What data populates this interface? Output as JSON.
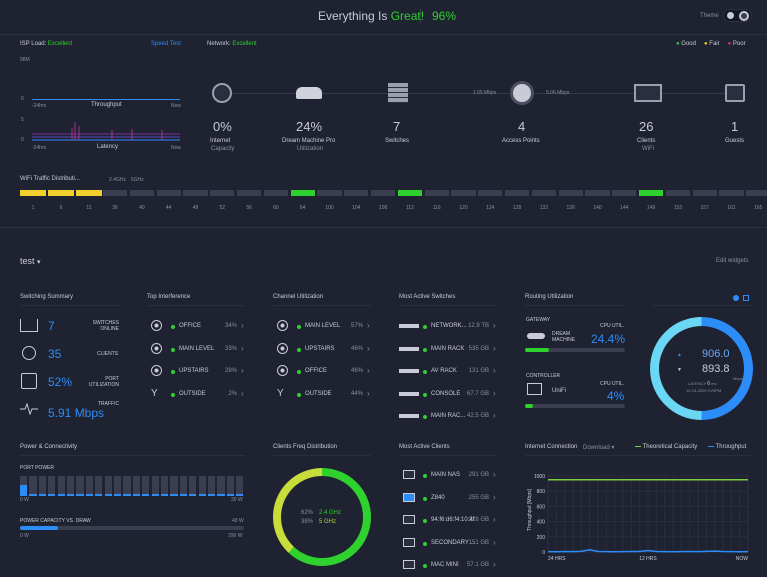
{
  "header": {
    "status_prefix": "Everything Is",
    "status_word": "Great!",
    "percent": "96%",
    "theme_label": "Theme"
  },
  "isp": {
    "label": "ISP Load:",
    "status": "Excellent",
    "speed_test": "Speed Test",
    "thr_max": "98M",
    "thr_zero": "0",
    "thr_left": "-24hrs",
    "thr_title": "Throughput",
    "thr_right": "Now",
    "lat_max": "5",
    "lat_zero": "0",
    "lat_left": "-24hrs",
    "lat_title": "Latency",
    "lat_right": "Now"
  },
  "network": {
    "label": "Network:",
    "status": "Excellent",
    "legend": [
      {
        "label": "Good",
        "color": "#2ed12e"
      },
      {
        "label": "Fair",
        "color": "#f2d02b"
      },
      {
        "label": "Poor",
        "color": "#e0334f"
      }
    ],
    "link_left": "1.65 Mbps",
    "link_right": "5.06 Mbps",
    "stats": [
      {
        "value": "0%",
        "label": "Internet",
        "sub": "Capacity"
      },
      {
        "value": "24%",
        "label": "Dream Machine Pro",
        "sub": "Utilization"
      },
      {
        "value": "7",
        "label": "Switches",
        "sub": ""
      },
      {
        "value": "4",
        "label": "Access Points",
        "sub": ""
      },
      {
        "value": "26",
        "label": "Clients",
        "sub": "WiFi"
      },
      {
        "value": "1",
        "label": "Guests",
        "sub": ""
      }
    ]
  },
  "wifi_traffic": {
    "title": "WiFi Traffic Distributi...",
    "band_24": "2.4GHz",
    "band_5": "5GHz",
    "channels": [
      "1",
      "6",
      "11",
      "36",
      "40",
      "44",
      "48",
      "52",
      "56",
      "60",
      "64",
      "100",
      "104",
      "108",
      "112",
      "116",
      "120",
      "124",
      "128",
      "132",
      "136",
      "140",
      "144",
      "149",
      "153",
      "157",
      "161",
      "165"
    ]
  },
  "site": {
    "name": "test",
    "edit": "Edit widgets"
  },
  "switching": {
    "title": "Switching Summary",
    "items": [
      {
        "value": "7",
        "label1": "SWITCHES",
        "label2": "ONLINE"
      },
      {
        "value": "35",
        "label1": "CLIENTS",
        "label2": ""
      },
      {
        "value": "52%",
        "label1": "PORT",
        "label2": "UTILIZATION"
      },
      {
        "value": "5.91 Mbps",
        "label1": "TRAFFIC",
        "label2": ""
      }
    ]
  },
  "interference": {
    "title": "Top Interference",
    "items": [
      {
        "name": "OFFICE",
        "value": "34%"
      },
      {
        "name": "MAIN LEVEL",
        "value": "33%"
      },
      {
        "name": "UPSTAIRS",
        "value": "28%"
      },
      {
        "name": "OUTSIDE",
        "value": "2%"
      }
    ]
  },
  "channel_util": {
    "title": "Channel Utilization",
    "items": [
      {
        "name": "MAIN LEVEL",
        "value": "57%"
      },
      {
        "name": "UPSTAIRS",
        "value": "46%"
      },
      {
        "name": "OFFICE",
        "value": "46%"
      },
      {
        "name": "OUTSIDE",
        "value": "44%"
      }
    ]
  },
  "active_switches": {
    "title": "Most Active Switches",
    "items": [
      {
        "name": "NETWORK...",
        "value": "12.9 TB"
      },
      {
        "name": "MAIN RACK",
        "value": "535 GB"
      },
      {
        "name": "AV RACK",
        "value": "131 GB"
      },
      {
        "name": "CONSOLE",
        "value": "67.7 GB"
      },
      {
        "name": "MAIN RAC...",
        "value": "42.5 GB"
      }
    ]
  },
  "routing": {
    "title": "Routing Utilization",
    "gateway_label": "GATEWAY",
    "gateway_name1": "DREAM",
    "gateway_name2": "MACHINE",
    "gateway_cpu_label": "CPU UTIL.",
    "gateway_cpu": "24.4%",
    "gateway_fill": 0.24,
    "controller_label": "CONTROLLER",
    "controller_name": "UniFi",
    "controller_cpu_label": "CPU UTIL.",
    "controller_cpu": "4%",
    "controller_fill": 0.04,
    "gauge": {
      "up": "906.0",
      "down": "893.8",
      "unit": "Mbps",
      "latency_label": "LATENCY",
      "latency": "6",
      "latency_unit": "ms",
      "date": "10-15-2020 9:29PM"
    }
  },
  "power": {
    "title": "Power & Connectivity",
    "port_power_label": "PORT POWER",
    "pp_min": "0 W",
    "pp_max": "30 W",
    "port_bars": [
      0.55,
      0.12,
      0.12,
      0.12,
      0.12,
      0.12,
      0.12,
      0.12,
      0.12,
      0.12,
      0.12,
      0.12,
      0.12,
      0.12,
      0.12,
      0.12,
      0.12,
      0.12,
      0.12,
      0.12,
      0.12,
      0.12,
      0.12,
      0.12
    ],
    "cap_label": "POWER CAPACITY VS. DRAW",
    "cap_value": "48 W",
    "cap_min": "0 W",
    "cap_max": "290 W",
    "cap_fill": 0.17
  },
  "clients_freq": {
    "title": "Clients Freq Distribution",
    "p24": "62%",
    "l24": "2.4 GHz",
    "p5": "38%",
    "l5": "5 GHz",
    "frac24": 0.62
  },
  "active_clients": {
    "title": "Most Active Clients",
    "items": [
      {
        "name": "MAIN NAS",
        "value": "291 GB"
      },
      {
        "name": "Z840",
        "value": "255 GB"
      },
      {
        "name": "94:f6:d6:f4:10:4f",
        "value": "228 GB"
      },
      {
        "name": "SECONDARY ...",
        "value": "151 GB"
      },
      {
        "name": "MAC MINI",
        "value": "57.1 GB"
      }
    ]
  },
  "internet_conn": {
    "title": "Internet Connection",
    "mode": "Download",
    "legend_capacity": "Theoretical Capacity",
    "legend_throughput": "Throughput",
    "cap_color": "#7ccf3a",
    "thr_color": "#2c8df8",
    "chart_data": {
      "type": "line",
      "title": "",
      "xlabel": "",
      "ylabel": "Throughput [Mbps]",
      "x_ticks": [
        "24 HRS",
        "12 HRS",
        "NOW"
      ],
      "y_ticks": [
        "1000",
        "800",
        "600",
        "400",
        "200",
        "0"
      ],
      "ylim": [
        0,
        1000
      ],
      "series": [
        {
          "name": "Theoretical Capacity",
          "values": [
            950,
            950,
            950,
            950,
            950,
            950,
            950,
            950,
            950,
            950,
            950,
            950,
            950,
            950,
            950,
            950,
            950,
            950,
            950,
            950,
            950,
            950,
            950,
            950,
            950
          ]
        },
        {
          "name": "Throughput",
          "values": [
            5,
            4,
            6,
            5,
            8,
            30,
            6,
            5,
            4,
            5,
            6,
            7,
            20,
            6,
            5,
            4,
            5,
            6,
            5,
            8,
            12,
            6,
            5,
            4,
            5
          ]
        }
      ]
    }
  }
}
